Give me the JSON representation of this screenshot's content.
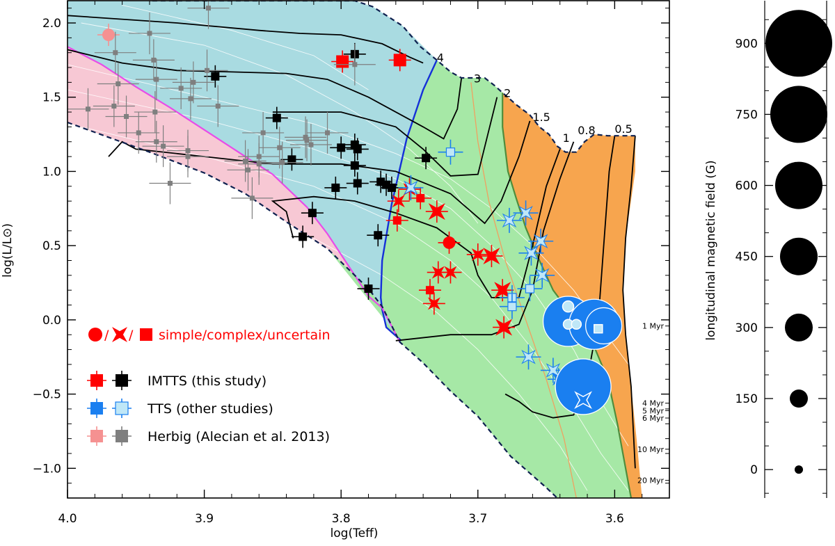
{
  "chart_data": [
    {
      "type": "scatter",
      "title": "",
      "xlabel": "log(Teff)",
      "ylabel": "log(L/L⊙)",
      "xlim": [
        4.0,
        3.56
      ],
      "ylim": [
        -1.2,
        2.15
      ],
      "x_ticks": [
        4.0,
        3.9,
        3.8,
        3.7,
        3.6
      ],
      "x_tick_labels": [
        "4.0",
        "3.9",
        "3.8",
        "3.7",
        "3.6"
      ],
      "y_ticks": [
        -1.0,
        -0.5,
        0.0,
        0.5,
        1.0,
        1.5,
        2.0
      ],
      "y_tick_labels": [
        "−1.0",
        "−0.5",
        "0.0",
        "0.5",
        "1.0",
        "1.5",
        "2.0"
      ],
      "mass_track_labels": [
        {
          "text": "4",
          "x": 3.73,
          "y": 1.74
        },
        {
          "text": "3",
          "x": 3.703,
          "y": 1.6
        },
        {
          "text": "2",
          "x": 3.681,
          "y": 1.5
        },
        {
          "text": "1.5",
          "x": 3.66,
          "y": 1.34
        },
        {
          "text": "1",
          "x": 3.638,
          "y": 1.2
        },
        {
          "text": "0.8",
          "x": 3.627,
          "y": 1.25
        },
        {
          "text": "0.5",
          "x": 3.6,
          "y": 1.26
        }
      ],
      "isochrone_labels": [
        {
          "text": "1 Myr",
          "y": -0.06
        },
        {
          "text": "4 Myr",
          "y": -0.58
        },
        {
          "text": "5 Myr",
          "y": -0.63
        },
        {
          "text": "6 Myr",
          "y": -0.68
        },
        {
          "text": "10 Myr",
          "y": -0.89
        },
        {
          "text": "20 Myr",
          "y": -1.1
        }
      ],
      "regions": [
        {
          "name": "pink",
          "color": "#f7c8d4"
        },
        {
          "name": "cyan",
          "color": "#a9dbe1"
        },
        {
          "name": "green",
          "color": "#a6e8a6"
        },
        {
          "name": "orange",
          "color": "#f7a54e"
        }
      ],
      "series": [
        {
          "name": "IMTTS (this study)",
          "color_simple": "#ff0000",
          "color_complex": "#000000",
          "points": [
            {
              "x": 3.799,
              "y": 1.74,
              "m": "sq",
              "c": "red",
              "big": true
            },
            {
              "x": 3.757,
              "y": 1.75,
              "m": "sq",
              "c": "red",
              "big": true
            },
            {
              "x": 3.79,
              "y": 1.79,
              "m": "sq",
              "c": "black"
            },
            {
              "x": 3.892,
              "y": 1.64,
              "m": "sq",
              "c": "black"
            },
            {
              "x": 3.847,
              "y": 1.36,
              "m": "sq",
              "c": "black"
            },
            {
              "x": 3.8,
              "y": 1.16,
              "m": "sq",
              "c": "black"
            },
            {
              "x": 3.79,
              "y": 1.18,
              "m": "sq",
              "c": "black"
            },
            {
              "x": 3.788,
              "y": 1.15,
              "m": "sq",
              "c": "black"
            },
            {
              "x": 3.79,
              "y": 1.04,
              "m": "sq",
              "c": "black"
            },
            {
              "x": 3.788,
              "y": 0.92,
              "m": "sq",
              "c": "black"
            },
            {
              "x": 3.804,
              "y": 0.89,
              "m": "sq",
              "c": "black"
            },
            {
              "x": 3.771,
              "y": 0.93,
              "m": "sq",
              "c": "black"
            },
            {
              "x": 3.767,
              "y": 0.91,
              "m": "sq",
              "c": "black"
            },
            {
              "x": 3.763,
              "y": 0.89,
              "m": "sq",
              "c": "black"
            },
            {
              "x": 3.836,
              "y": 1.08,
              "m": "sq",
              "c": "black"
            },
            {
              "x": 3.738,
              "y": 1.09,
              "m": "sq",
              "c": "black"
            },
            {
              "x": 3.821,
              "y": 0.72,
              "m": "sq",
              "c": "black"
            },
            {
              "x": 3.828,
              "y": 0.56,
              "m": "sq",
              "c": "black"
            },
            {
              "x": 3.773,
              "y": 0.57,
              "m": "sq",
              "c": "black"
            },
            {
              "x": 3.78,
              "y": 0.21,
              "m": "sq",
              "c": "black"
            },
            {
              "x": 3.75,
              "y": 0.88,
              "m": "star",
              "c": "red"
            },
            {
              "x": 3.758,
              "y": 0.8,
              "m": "star",
              "c": "red"
            },
            {
              "x": 3.742,
              "y": 0.82,
              "m": "sq",
              "c": "red"
            },
            {
              "x": 3.73,
              "y": 0.73,
              "m": "star",
              "c": "red",
              "big": true
            },
            {
              "x": 3.759,
              "y": 0.67,
              "m": "sq",
              "c": "red"
            },
            {
              "x": 3.721,
              "y": 0.52,
              "m": "circ",
              "c": "red"
            },
            {
              "x": 3.7,
              "y": 0.44,
              "m": "star",
              "c": "red"
            },
            {
              "x": 3.69,
              "y": 0.43,
              "m": "star",
              "c": "red",
              "big": true
            },
            {
              "x": 3.72,
              "y": 0.32,
              "m": "star",
              "c": "red"
            },
            {
              "x": 3.729,
              "y": 0.32,
              "m": "star",
              "c": "red"
            },
            {
              "x": 3.735,
              "y": 0.2,
              "m": "sq",
              "c": "red"
            },
            {
              "x": 3.732,
              "y": 0.11,
              "m": "star",
              "c": "red"
            },
            {
              "x": 3.682,
              "y": 0.2,
              "m": "star",
              "c": "red",
              "big": true
            },
            {
              "x": 3.681,
              "y": -0.05,
              "m": "star",
              "c": "red",
              "big": true
            }
          ]
        },
        {
          "name": "TTS (other studies)",
          "color_simple": "#1a7ff0",
          "color_complex": "#bfe7f7",
          "points": [
            {
              "x": 3.72,
              "y": 1.13,
              "m": "sq",
              "c": "light"
            },
            {
              "x": 3.749,
              "y": 0.89,
              "m": "star",
              "c": "light"
            },
            {
              "x": 3.677,
              "y": 0.67,
              "m": "star",
              "c": "light"
            },
            {
              "x": 3.665,
              "y": 0.72,
              "m": "star",
              "c": "light"
            },
            {
              "x": 3.654,
              "y": 0.53,
              "m": "star",
              "c": "light"
            },
            {
              "x": 3.661,
              "y": 0.45,
              "m": "star",
              "c": "light"
            },
            {
              "x": 3.653,
              "y": 0.3,
              "m": "star",
              "c": "light"
            },
            {
              "x": 3.662,
              "y": 0.21,
              "m": "sq",
              "c": "light"
            },
            {
              "x": 3.675,
              "y": 0.15,
              "m": "sq",
              "c": "light"
            },
            {
              "x": 3.675,
              "y": 0.09,
              "m": "sq",
              "c": "light"
            },
            {
              "x": 3.663,
              "y": -0.25,
              "m": "star",
              "c": "light"
            },
            {
              "x": 3.645,
              "y": -0.34,
              "m": "star",
              "c": "light"
            },
            {
              "x": 3.641,
              "y": -0.4,
              "m": "star",
              "c": "blue"
            },
            {
              "x": 3.634,
              "y": -0.01,
              "m": "circ",
              "c": "blue",
              "r": 36
            },
            {
              "x": 3.615,
              "y": -0.03,
              "m": "circ",
              "c": "blue",
              "r": 36
            },
            {
              "x": 3.608,
              "y": -0.04,
              "m": "circ",
              "c": "blue",
              "r": 26
            },
            {
              "x": 3.623,
              "y": -0.45,
              "m": "circ",
              "c": "blue",
              "r": 40
            }
          ]
        },
        {
          "name": "Herbig (Alecian et al. 2013)",
          "color_simple": "#f59191",
          "color_complex": "#7f7f7f",
          "points": [
            {
              "x": 3.97,
              "y": 1.92,
              "m": "circ",
              "c": "pink"
            },
            {
              "x": 3.965,
              "y": 1.8,
              "m": "sq",
              "c": "gray"
            },
            {
              "x": 3.963,
              "y": 1.59,
              "m": "sq",
              "c": "gray"
            },
            {
              "x": 3.94,
              "y": 1.93,
              "m": "sq",
              "c": "gray"
            },
            {
              "x": 3.908,
              "y": 1.6,
              "m": "sq",
              "c": "gray"
            },
            {
              "x": 3.917,
              "y": 1.56,
              "m": "sq",
              "c": "gray"
            },
            {
              "x": 3.91,
              "y": 1.49,
              "m": "sq",
              "c": "gray"
            },
            {
              "x": 3.937,
              "y": 1.75,
              "m": "sq",
              "c": "gray"
            },
            {
              "x": 3.898,
              "y": 1.68,
              "m": "sq",
              "c": "gray"
            },
            {
              "x": 3.936,
              "y": 1.4,
              "m": "sq",
              "c": "gray"
            },
            {
              "x": 3.966,
              "y": 1.44,
              "m": "sq",
              "c": "gray"
            },
            {
              "x": 3.948,
              "y": 1.26,
              "m": "sq",
              "c": "gray"
            },
            {
              "x": 3.935,
              "y": 1.2,
              "m": "sq",
              "c": "gray"
            },
            {
              "x": 3.93,
              "y": 1.17,
              "m": "sq",
              "c": "gray"
            },
            {
              "x": 3.912,
              "y": 1.14,
              "m": "sq",
              "c": "gray"
            },
            {
              "x": 3.89,
              "y": 1.44,
              "m": "sq",
              "c": "gray"
            },
            {
              "x": 3.857,
              "y": 1.26,
              "m": "sq",
              "c": "gray"
            },
            {
              "x": 3.826,
              "y": 1.23,
              "m": "sq",
              "c": "gray"
            },
            {
              "x": 3.825,
              "y": 1.21,
              "m": "sq",
              "c": "gray"
            },
            {
              "x": 3.822,
              "y": 1.18,
              "m": "sq",
              "c": "gray"
            },
            {
              "x": 3.81,
              "y": 1.26,
              "m": "sq",
              "c": "gray"
            },
            {
              "x": 3.845,
              "y": 1.16,
              "m": "sq",
              "c": "gray"
            },
            {
              "x": 3.87,
              "y": 1.07,
              "m": "sq",
              "c": "gray"
            },
            {
              "x": 3.86,
              "y": 1.05,
              "m": "sq",
              "c": "gray"
            },
            {
              "x": 3.868,
              "y": 1.01,
              "m": "sq",
              "c": "gray"
            },
            {
              "x": 3.843,
              "y": 1.06,
              "m": "sq",
              "c": "gray"
            },
            {
              "x": 3.865,
              "y": 0.82,
              "m": "sq",
              "c": "gray"
            },
            {
              "x": 3.925,
              "y": 0.92,
              "m": "sq",
              "c": "gray"
            },
            {
              "x": 3.957,
              "y": 1.37,
              "m": "sq",
              "c": "gray"
            },
            {
              "x": 3.985,
              "y": 1.42,
              "m": "sq",
              "c": "gray"
            },
            {
              "x": 3.897,
              "y": 2.1,
              "m": "sq",
              "c": "gray"
            },
            {
              "x": 3.935,
              "y": 1.62,
              "m": "sq",
              "c": "gray"
            },
            {
              "x": 3.912,
              "y": 1.1,
              "m": "sq",
              "c": "gray"
            },
            {
              "x": 3.79,
              "y": 1.72,
              "m": "sq",
              "c": "gray"
            },
            {
              "x": 3.86,
              "y": 1.1,
              "m": "sq",
              "c": "gray"
            }
          ]
        }
      ],
      "legend": {
        "classification": "simple/complex/uncertain",
        "entries": [
          "IMTTS (this study)",
          "TTS (other studies)",
          "Herbig (Alecian et al. 2013)"
        ]
      }
    },
    {
      "type": "scatter",
      "title": "",
      "xlabel": "",
      "ylabel": "longitudinal magnetic field (G)",
      "ylim": [
        -60,
        990
      ],
      "y_ticks": [
        0,
        150,
        300,
        450,
        600,
        750,
        900
      ],
      "y_tick_labels": [
        "0",
        "150",
        "300",
        "450",
        "600",
        "750",
        "900"
      ],
      "size_key": [
        {
          "value": 0,
          "r": 6
        },
        {
          "value": 150,
          "r": 13
        },
        {
          "value": 300,
          "r": 20
        },
        {
          "value": 450,
          "r": 27
        },
        {
          "value": 600,
          "r": 34
        },
        {
          "value": 750,
          "r": 41
        },
        {
          "value": 900,
          "r": 48
        }
      ]
    }
  ]
}
